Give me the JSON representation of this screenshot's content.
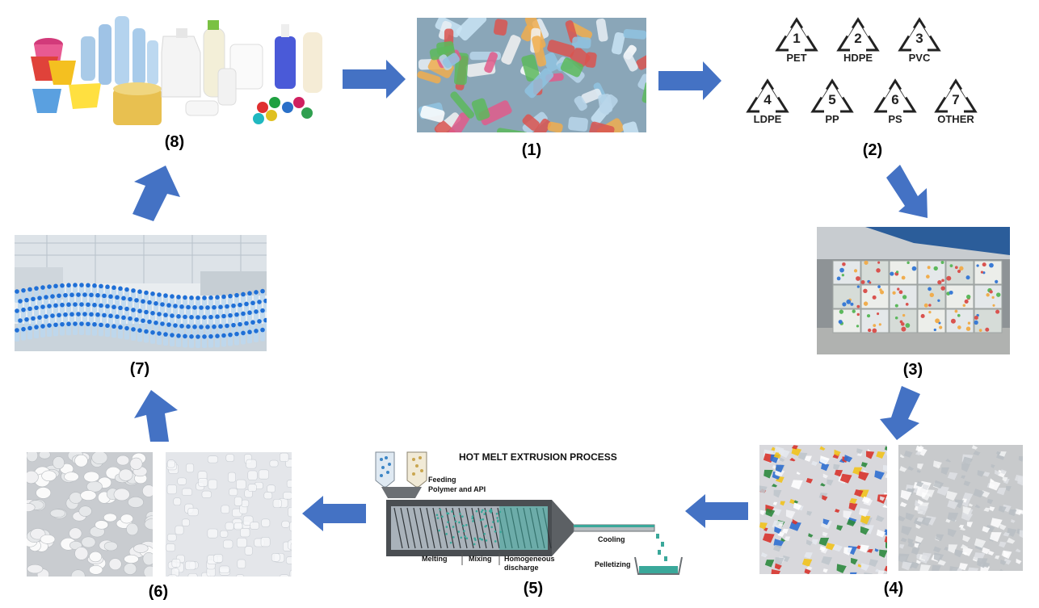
{
  "steps": [
    {
      "id": "(1)"
    },
    {
      "id": "(2)"
    },
    {
      "id": "(3)"
    },
    {
      "id": "(4)"
    },
    {
      "id": "(5)"
    },
    {
      "id": "(6)"
    },
    {
      "id": "(7)"
    },
    {
      "id": "(8)"
    }
  ],
  "resin_codes": [
    {
      "num": "1",
      "code": "PET"
    },
    {
      "num": "2",
      "code": "HDPE"
    },
    {
      "num": "3",
      "code": "PVC"
    },
    {
      "num": "4",
      "code": "LDPE"
    },
    {
      "num": "5",
      "code": "PP"
    },
    {
      "num": "6",
      "code": "PS"
    },
    {
      "num": "7",
      "code": "OTHER"
    }
  ],
  "extrusion": {
    "title": "HOT MELT EXTRUSION PROCESS",
    "feeding": "Feeding",
    "feeding_sub": "Polymer and API",
    "cooling": "Cooling",
    "pelletizing": "Pelletizing",
    "melting": "Melting",
    "mixing": "Mixing",
    "homogeneous": "Homogeneous",
    "discharge": "discharge"
  },
  "colors": {
    "arrow": "#4472C4",
    "pellet_teal": "#3aa89a"
  }
}
